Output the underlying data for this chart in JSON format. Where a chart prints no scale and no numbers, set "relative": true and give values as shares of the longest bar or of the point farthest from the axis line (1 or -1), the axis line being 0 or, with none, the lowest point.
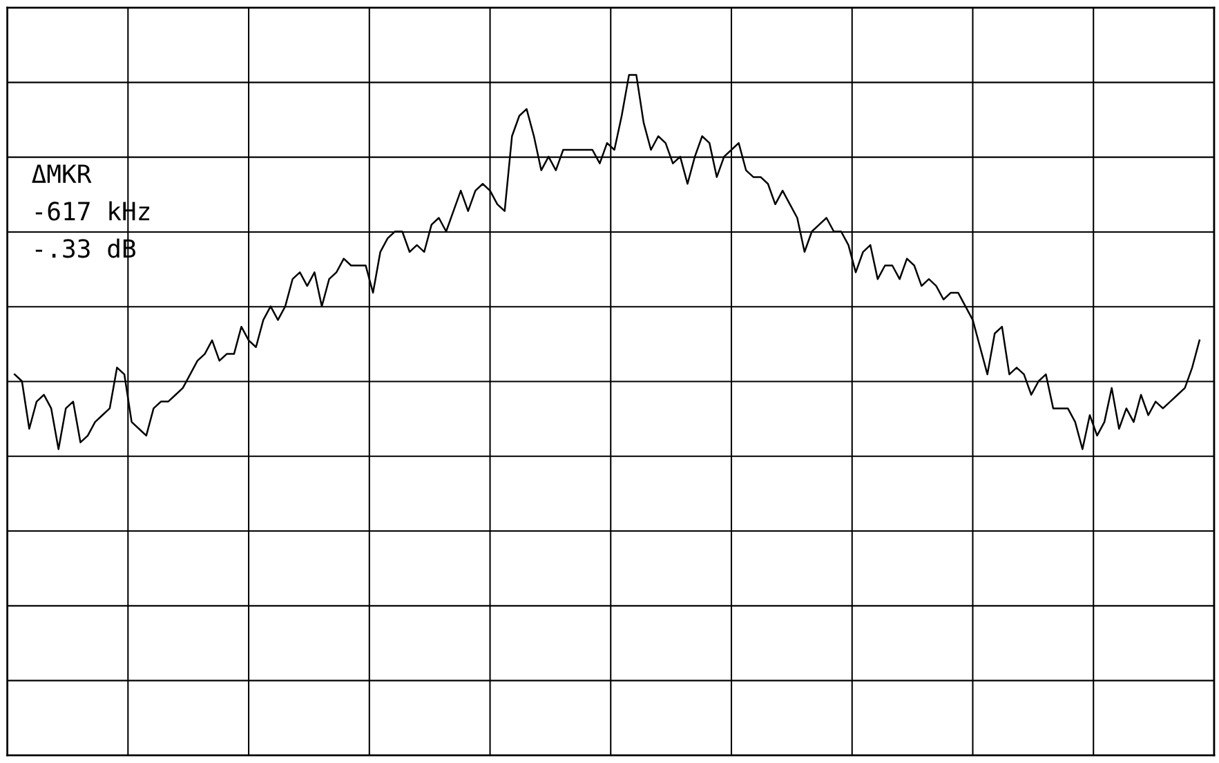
{
  "chart_data": {
    "type": "line",
    "relative": true,
    "grid": true,
    "marker": "none",
    "line_style": "solid",
    "categories": [
      null,
      null,
      null,
      null,
      null,
      null,
      null,
      null,
      null,
      null,
      null,
      null,
      null,
      null,
      null,
      null,
      null,
      null,
      null,
      null,
      null,
      null,
      null,
      null,
      null,
      null,
      null,
      null,
      null,
      null,
      null,
      null,
      null,
      null,
      null,
      null,
      null,
      null,
      null,
      null,
      null,
      null,
      null,
      null,
      null,
      null,
      null,
      null,
      null,
      null,
      null,
      null,
      null,
      null,
      null,
      null,
      null,
      null,
      null,
      null,
      null,
      null,
      null,
      null,
      null,
      null,
      null,
      null,
      null,
      null,
      null,
      null,
      null,
      null,
      null,
      null,
      null,
      null,
      null,
      null,
      null,
      null,
      null,
      null,
      null,
      null,
      null,
      null,
      null,
      null,
      null,
      null,
      null,
      null,
      null,
      null,
      null,
      null,
      null,
      null,
      null,
      null,
      null,
      null,
      null,
      null,
      null,
      null,
      null,
      null,
      null,
      null,
      null,
      null,
      null,
      null,
      null,
      null,
      null,
      null,
      null,
      null,
      null,
      null,
      null,
      null,
      null,
      null,
      null,
      null,
      null,
      null,
      null,
      null,
      null,
      null,
      null,
      null,
      null,
      null,
      null,
      null,
      null,
      null,
      null,
      null,
      null,
      null,
      null,
      null,
      null,
      null,
      null,
      null,
      null,
      null,
      null,
      null,
      null,
      null,
      null,
      null,
      null
    ],
    "series": [
      {
        "color": "#000000",
        "values": [
          0.56,
          0.55,
          0.48,
          0.52,
          0.53,
          0.51,
          0.45,
          0.51,
          0.52,
          0.46,
          0.47,
          0.49,
          0.5,
          0.51,
          0.57,
          0.56,
          0.49,
          0.48,
          0.47,
          0.51,
          0.52,
          0.52,
          0.53,
          0.54,
          0.56,
          0.58,
          0.59,
          0.61,
          0.58,
          0.59,
          0.59,
          0.63,
          0.61,
          0.6,
          0.64,
          0.66,
          0.64,
          0.66,
          0.7,
          0.71,
          0.69,
          0.71,
          0.66,
          0.7,
          0.71,
          0.73,
          0.72,
          0.72,
          0.72,
          0.68,
          0.74,
          0.76,
          0.77,
          0.77,
          0.74,
          0.75,
          0.74,
          0.78,
          0.79,
          0.77,
          0.8,
          0.83,
          0.8,
          0.83,
          0.84,
          0.83,
          0.81,
          0.8,
          0.91,
          0.94,
          0.95,
          0.91,
          0.86,
          0.88,
          0.86,
          0.89,
          0.89,
          0.89,
          0.89,
          0.89,
          0.87,
          0.9,
          0.89,
          0.94,
          1.0,
          1.0,
          0.93,
          0.89,
          0.91,
          0.9,
          0.87,
          0.88,
          0.84,
          0.88,
          0.91,
          0.9,
          0.85,
          0.88,
          0.89,
          0.9,
          0.86,
          0.85,
          0.85,
          0.84,
          0.81,
          0.83,
          0.81,
          0.79,
          0.74,
          0.77,
          0.78,
          0.79,
          0.77,
          0.77,
          0.75,
          0.71,
          0.74,
          0.75,
          0.7,
          0.72,
          0.72,
          0.7,
          0.73,
          0.72,
          0.69,
          0.7,
          0.69,
          0.67,
          0.68,
          0.68,
          0.66,
          0.64,
          0.6,
          0.56,
          0.62,
          0.63,
          0.56,
          0.57,
          0.56,
          0.53,
          0.55,
          0.56,
          0.51,
          0.51,
          0.51,
          0.49,
          0.45,
          0.5,
          0.47,
          0.49,
          0.54,
          0.48,
          0.51,
          0.49,
          0.53,
          0.5,
          0.52,
          0.51,
          0.52,
          0.53,
          0.54,
          0.57,
          0.61
        ]
      }
    ],
    "annotations": [
      "ΔMKR",
      "-617 kHz",
      "-.33 dB"
    ]
  }
}
